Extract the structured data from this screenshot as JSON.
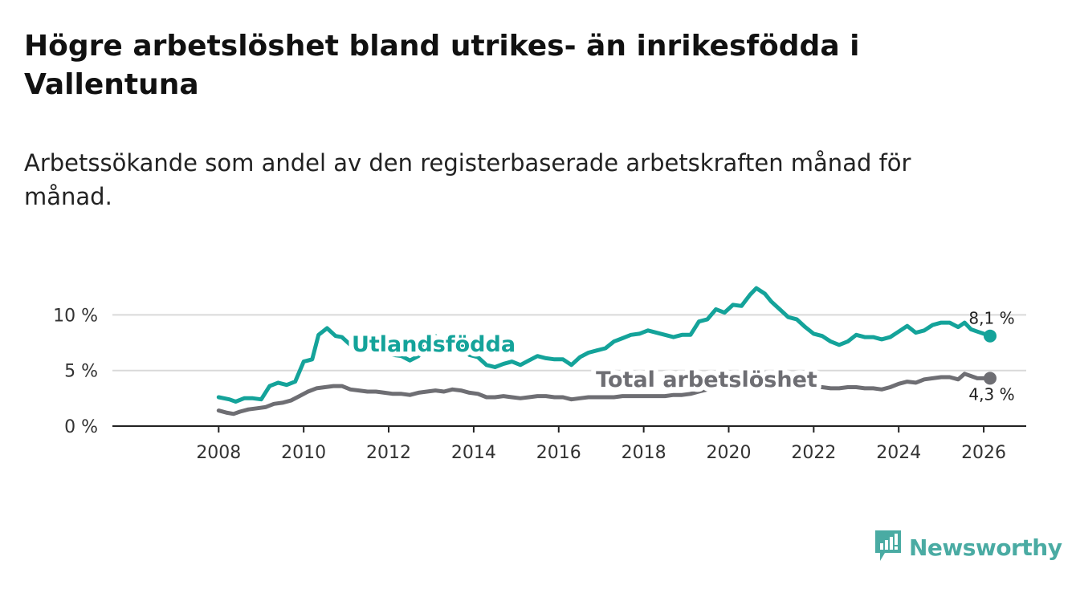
{
  "title": "Högre arbetslöshet bland utrikes- än inrikesfödda i Vallentuna",
  "subtitle": "Arbetssökande som andel av den registerbaserade arbetskraften månad för månad.",
  "brand": {
    "name": "Newsworthy",
    "color": "#4aaba3",
    "icon": "bar-chart-logo-icon"
  },
  "chart_data": {
    "type": "line",
    "x_unit": "year",
    "xlim": [
      2005.5,
      2027.0
    ],
    "ylim": [
      0,
      14.5
    ],
    "x_ticks": [
      2008,
      2010,
      2012,
      2014,
      2016,
      2018,
      2020,
      2022,
      2024,
      2026
    ],
    "x_tick_labels": [
      "2008",
      "2010",
      "2012",
      "2014",
      "2016",
      "2018",
      "2020",
      "2022",
      "2024",
      "2026"
    ],
    "y_ticks": [
      0,
      5,
      10
    ],
    "y_tick_labels": [
      "0 %",
      "5 %",
      "10 %"
    ],
    "grid": true,
    "series": [
      {
        "name": "Utlandsfödda",
        "color": "#14a39a",
        "end_label": "8,1 %",
        "points": [
          [
            2008.0,
            2.6
          ],
          [
            2008.25,
            2.4
          ],
          [
            2008.4,
            2.2
          ],
          [
            2008.6,
            2.5
          ],
          [
            2008.8,
            2.5
          ],
          [
            2009.0,
            2.4
          ],
          [
            2009.2,
            3.6
          ],
          [
            2009.4,
            3.9
          ],
          [
            2009.6,
            3.7
          ],
          [
            2009.8,
            4.0
          ],
          [
            2010.0,
            5.8
          ],
          [
            2010.2,
            6.0
          ],
          [
            2010.35,
            8.2
          ],
          [
            2010.55,
            8.8
          ],
          [
            2010.75,
            8.1
          ],
          [
            2010.9,
            8.0
          ],
          [
            2011.1,
            7.3
          ],
          [
            2011.3,
            7.4
          ],
          [
            2011.5,
            7.0
          ],
          [
            2011.7,
            7.6
          ],
          [
            2011.9,
            7.2
          ],
          [
            2012.1,
            6.4
          ],
          [
            2012.3,
            6.3
          ],
          [
            2012.5,
            5.9
          ],
          [
            2012.7,
            6.3
          ],
          [
            2012.9,
            7.5
          ],
          [
            2013.1,
            8.1
          ],
          [
            2013.3,
            7.2
          ],
          [
            2013.5,
            7.5
          ],
          [
            2013.7,
            7.4
          ],
          [
            2013.9,
            6.4
          ],
          [
            2014.1,
            6.2
          ],
          [
            2014.3,
            5.5
          ],
          [
            2014.5,
            5.3
          ],
          [
            2014.7,
            5.6
          ],
          [
            2014.9,
            5.8
          ],
          [
            2015.1,
            5.5
          ],
          [
            2015.3,
            5.9
          ],
          [
            2015.5,
            6.3
          ],
          [
            2015.7,
            6.1
          ],
          [
            2015.9,
            6.0
          ],
          [
            2016.1,
            6.0
          ],
          [
            2016.3,
            5.5
          ],
          [
            2016.5,
            6.2
          ],
          [
            2016.7,
            6.6
          ],
          [
            2016.9,
            6.8
          ],
          [
            2017.1,
            7.0
          ],
          [
            2017.3,
            7.6
          ],
          [
            2017.5,
            7.9
          ],
          [
            2017.7,
            8.2
          ],
          [
            2017.9,
            8.3
          ],
          [
            2018.1,
            8.6
          ],
          [
            2018.3,
            8.4
          ],
          [
            2018.5,
            8.2
          ],
          [
            2018.7,
            8.0
          ],
          [
            2018.9,
            8.2
          ],
          [
            2019.1,
            8.2
          ],
          [
            2019.3,
            9.4
          ],
          [
            2019.5,
            9.6
          ],
          [
            2019.7,
            10.5
          ],
          [
            2019.9,
            10.2
          ],
          [
            2020.1,
            10.9
          ],
          [
            2020.3,
            10.8
          ],
          [
            2020.5,
            11.8
          ],
          [
            2020.65,
            12.4
          ],
          [
            2020.85,
            11.9
          ],
          [
            2021.0,
            11.2
          ],
          [
            2021.2,
            10.5
          ],
          [
            2021.4,
            9.8
          ],
          [
            2021.6,
            9.6
          ],
          [
            2021.8,
            8.9
          ],
          [
            2022.0,
            8.3
          ],
          [
            2022.2,
            8.1
          ],
          [
            2022.4,
            7.6
          ],
          [
            2022.6,
            7.3
          ],
          [
            2022.8,
            7.6
          ],
          [
            2023.0,
            8.2
          ],
          [
            2023.2,
            8.0
          ],
          [
            2023.4,
            8.0
          ],
          [
            2023.6,
            7.8
          ],
          [
            2023.8,
            8.0
          ],
          [
            2024.0,
            8.5
          ],
          [
            2024.2,
            9.0
          ],
          [
            2024.4,
            8.4
          ],
          [
            2024.6,
            8.6
          ],
          [
            2024.8,
            9.1
          ],
          [
            2025.0,
            9.3
          ],
          [
            2025.2,
            9.3
          ],
          [
            2025.4,
            8.9
          ],
          [
            2025.55,
            9.3
          ],
          [
            2025.7,
            8.7
          ],
          [
            2025.85,
            8.5
          ],
          [
            2026.0,
            8.3
          ],
          [
            2026.15,
            8.1
          ]
        ]
      },
      {
        "name": "Total arbetslöshet",
        "color": "#6e6e73",
        "end_label": "4,3 %",
        "points": [
          [
            2008.0,
            1.4
          ],
          [
            2008.2,
            1.2
          ],
          [
            2008.35,
            1.1
          ],
          [
            2008.5,
            1.3
          ],
          [
            2008.7,
            1.5
          ],
          [
            2008.9,
            1.6
          ],
          [
            2009.1,
            1.7
          ],
          [
            2009.3,
            2.0
          ],
          [
            2009.5,
            2.1
          ],
          [
            2009.7,
            2.3
          ],
          [
            2009.9,
            2.7
          ],
          [
            2010.1,
            3.1
          ],
          [
            2010.3,
            3.4
          ],
          [
            2010.5,
            3.5
          ],
          [
            2010.7,
            3.6
          ],
          [
            2010.9,
            3.6
          ],
          [
            2011.1,
            3.3
          ],
          [
            2011.3,
            3.2
          ],
          [
            2011.5,
            3.1
          ],
          [
            2011.7,
            3.1
          ],
          [
            2011.9,
            3.0
          ],
          [
            2012.1,
            2.9
          ],
          [
            2012.3,
            2.9
          ],
          [
            2012.5,
            2.8
          ],
          [
            2012.7,
            3.0
          ],
          [
            2012.9,
            3.1
          ],
          [
            2013.1,
            3.2
          ],
          [
            2013.3,
            3.1
          ],
          [
            2013.5,
            3.3
          ],
          [
            2013.7,
            3.2
          ],
          [
            2013.9,
            3.0
          ],
          [
            2014.1,
            2.9
          ],
          [
            2014.3,
            2.6
          ],
          [
            2014.5,
            2.6
          ],
          [
            2014.7,
            2.7
          ],
          [
            2014.9,
            2.6
          ],
          [
            2015.1,
            2.5
          ],
          [
            2015.3,
            2.6
          ],
          [
            2015.5,
            2.7
          ],
          [
            2015.7,
            2.7
          ],
          [
            2015.9,
            2.6
          ],
          [
            2016.1,
            2.6
          ],
          [
            2016.3,
            2.4
          ],
          [
            2016.5,
            2.5
          ],
          [
            2016.7,
            2.6
          ],
          [
            2016.9,
            2.6
          ],
          [
            2017.1,
            2.6
          ],
          [
            2017.3,
            2.6
          ],
          [
            2017.5,
            2.7
          ],
          [
            2017.7,
            2.7
          ],
          [
            2017.9,
            2.7
          ],
          [
            2018.1,
            2.7
          ],
          [
            2018.3,
            2.7
          ],
          [
            2018.5,
            2.7
          ],
          [
            2018.7,
            2.8
          ],
          [
            2018.9,
            2.8
          ],
          [
            2019.1,
            2.9
          ],
          [
            2019.3,
            3.1
          ],
          [
            2019.5,
            3.3
          ],
          [
            2019.7,
            3.6
          ],
          [
            2019.9,
            3.7
          ],
          [
            2020.1,
            4.0
          ],
          [
            2020.3,
            4.2
          ],
          [
            2020.5,
            4.8
          ],
          [
            2020.65,
            5.0
          ],
          [
            2020.85,
            4.8
          ],
          [
            2021.0,
            4.5
          ],
          [
            2021.2,
            4.2
          ],
          [
            2021.4,
            4.0
          ],
          [
            2021.6,
            3.9
          ],
          [
            2021.8,
            3.7
          ],
          [
            2022.0,
            3.5
          ],
          [
            2022.2,
            3.5
          ],
          [
            2022.4,
            3.4
          ],
          [
            2022.6,
            3.4
          ],
          [
            2022.8,
            3.5
          ],
          [
            2023.0,
            3.5
          ],
          [
            2023.2,
            3.4
          ],
          [
            2023.4,
            3.4
          ],
          [
            2023.6,
            3.3
          ],
          [
            2023.8,
            3.5
          ],
          [
            2024.0,
            3.8
          ],
          [
            2024.2,
            4.0
          ],
          [
            2024.4,
            3.9
          ],
          [
            2024.6,
            4.2
          ],
          [
            2024.8,
            4.3
          ],
          [
            2025.0,
            4.4
          ],
          [
            2025.2,
            4.4
          ],
          [
            2025.4,
            4.2
          ],
          [
            2025.55,
            4.7
          ],
          [
            2025.7,
            4.5
          ],
          [
            2025.85,
            4.3
          ],
          [
            2026.0,
            4.3
          ],
          [
            2026.15,
            4.3
          ]
        ]
      }
    ]
  }
}
